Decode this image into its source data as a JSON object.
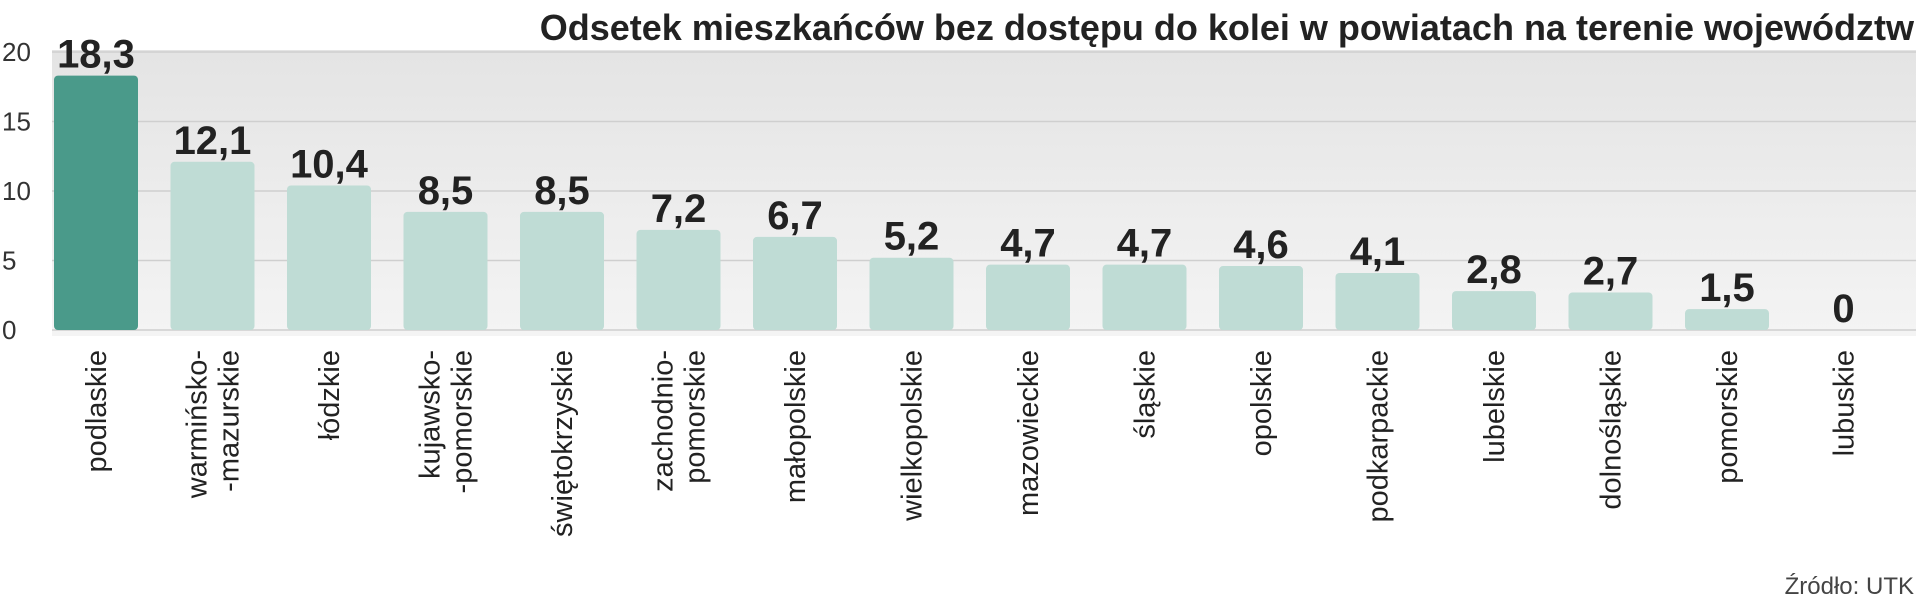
{
  "chart_data": {
    "type": "bar",
    "title": "Odsetek mieszkańców bez dostępu do kolei w powiatach na terenie województw",
    "source": "Źródło: UTK",
    "categories": [
      [
        "podlaskie"
      ],
      [
        "warmińsko-",
        "-mazurskie"
      ],
      [
        "łódzkie"
      ],
      [
        "kujawsko-",
        "-pomorskie"
      ],
      [
        "świętokrzyskie"
      ],
      [
        "zachodnio-",
        "pomorskie"
      ],
      [
        "małopolskie"
      ],
      [
        "wielkopolskie"
      ],
      [
        "mazowieckie"
      ],
      [
        "śląskie"
      ],
      [
        "opolskie"
      ],
      [
        "podkarpackie"
      ],
      [
        "lubelskie"
      ],
      [
        "dolnośląskie"
      ],
      [
        "pomorskie"
      ],
      [
        "lubuskie"
      ]
    ],
    "values": [
      18.3,
      12.1,
      10.4,
      8.5,
      8.5,
      7.2,
      6.7,
      5.2,
      4.7,
      4.7,
      4.6,
      4.1,
      2.8,
      2.7,
      1.5,
      0
    ],
    "value_labels": [
      "18,3",
      "12,1",
      "10,4",
      "8,5",
      "8,5",
      "7,2",
      "6,7",
      "5,2",
      "4,7",
      "4,7",
      "4,6",
      "4,1",
      "2,8",
      "2,7",
      "1,5",
      "0"
    ],
    "yticks": [
      0,
      5,
      10,
      15,
      20
    ],
    "ylim": [
      0,
      20
    ],
    "grid": true,
    "colors": {
      "highlight": "#4a9a8a",
      "bar": "#bfdcd5",
      "grid": "#cfcfcf",
      "plot_bg_top": "#e4e4e4",
      "plot_bg_bottom": "#f4f4f4"
    }
  }
}
